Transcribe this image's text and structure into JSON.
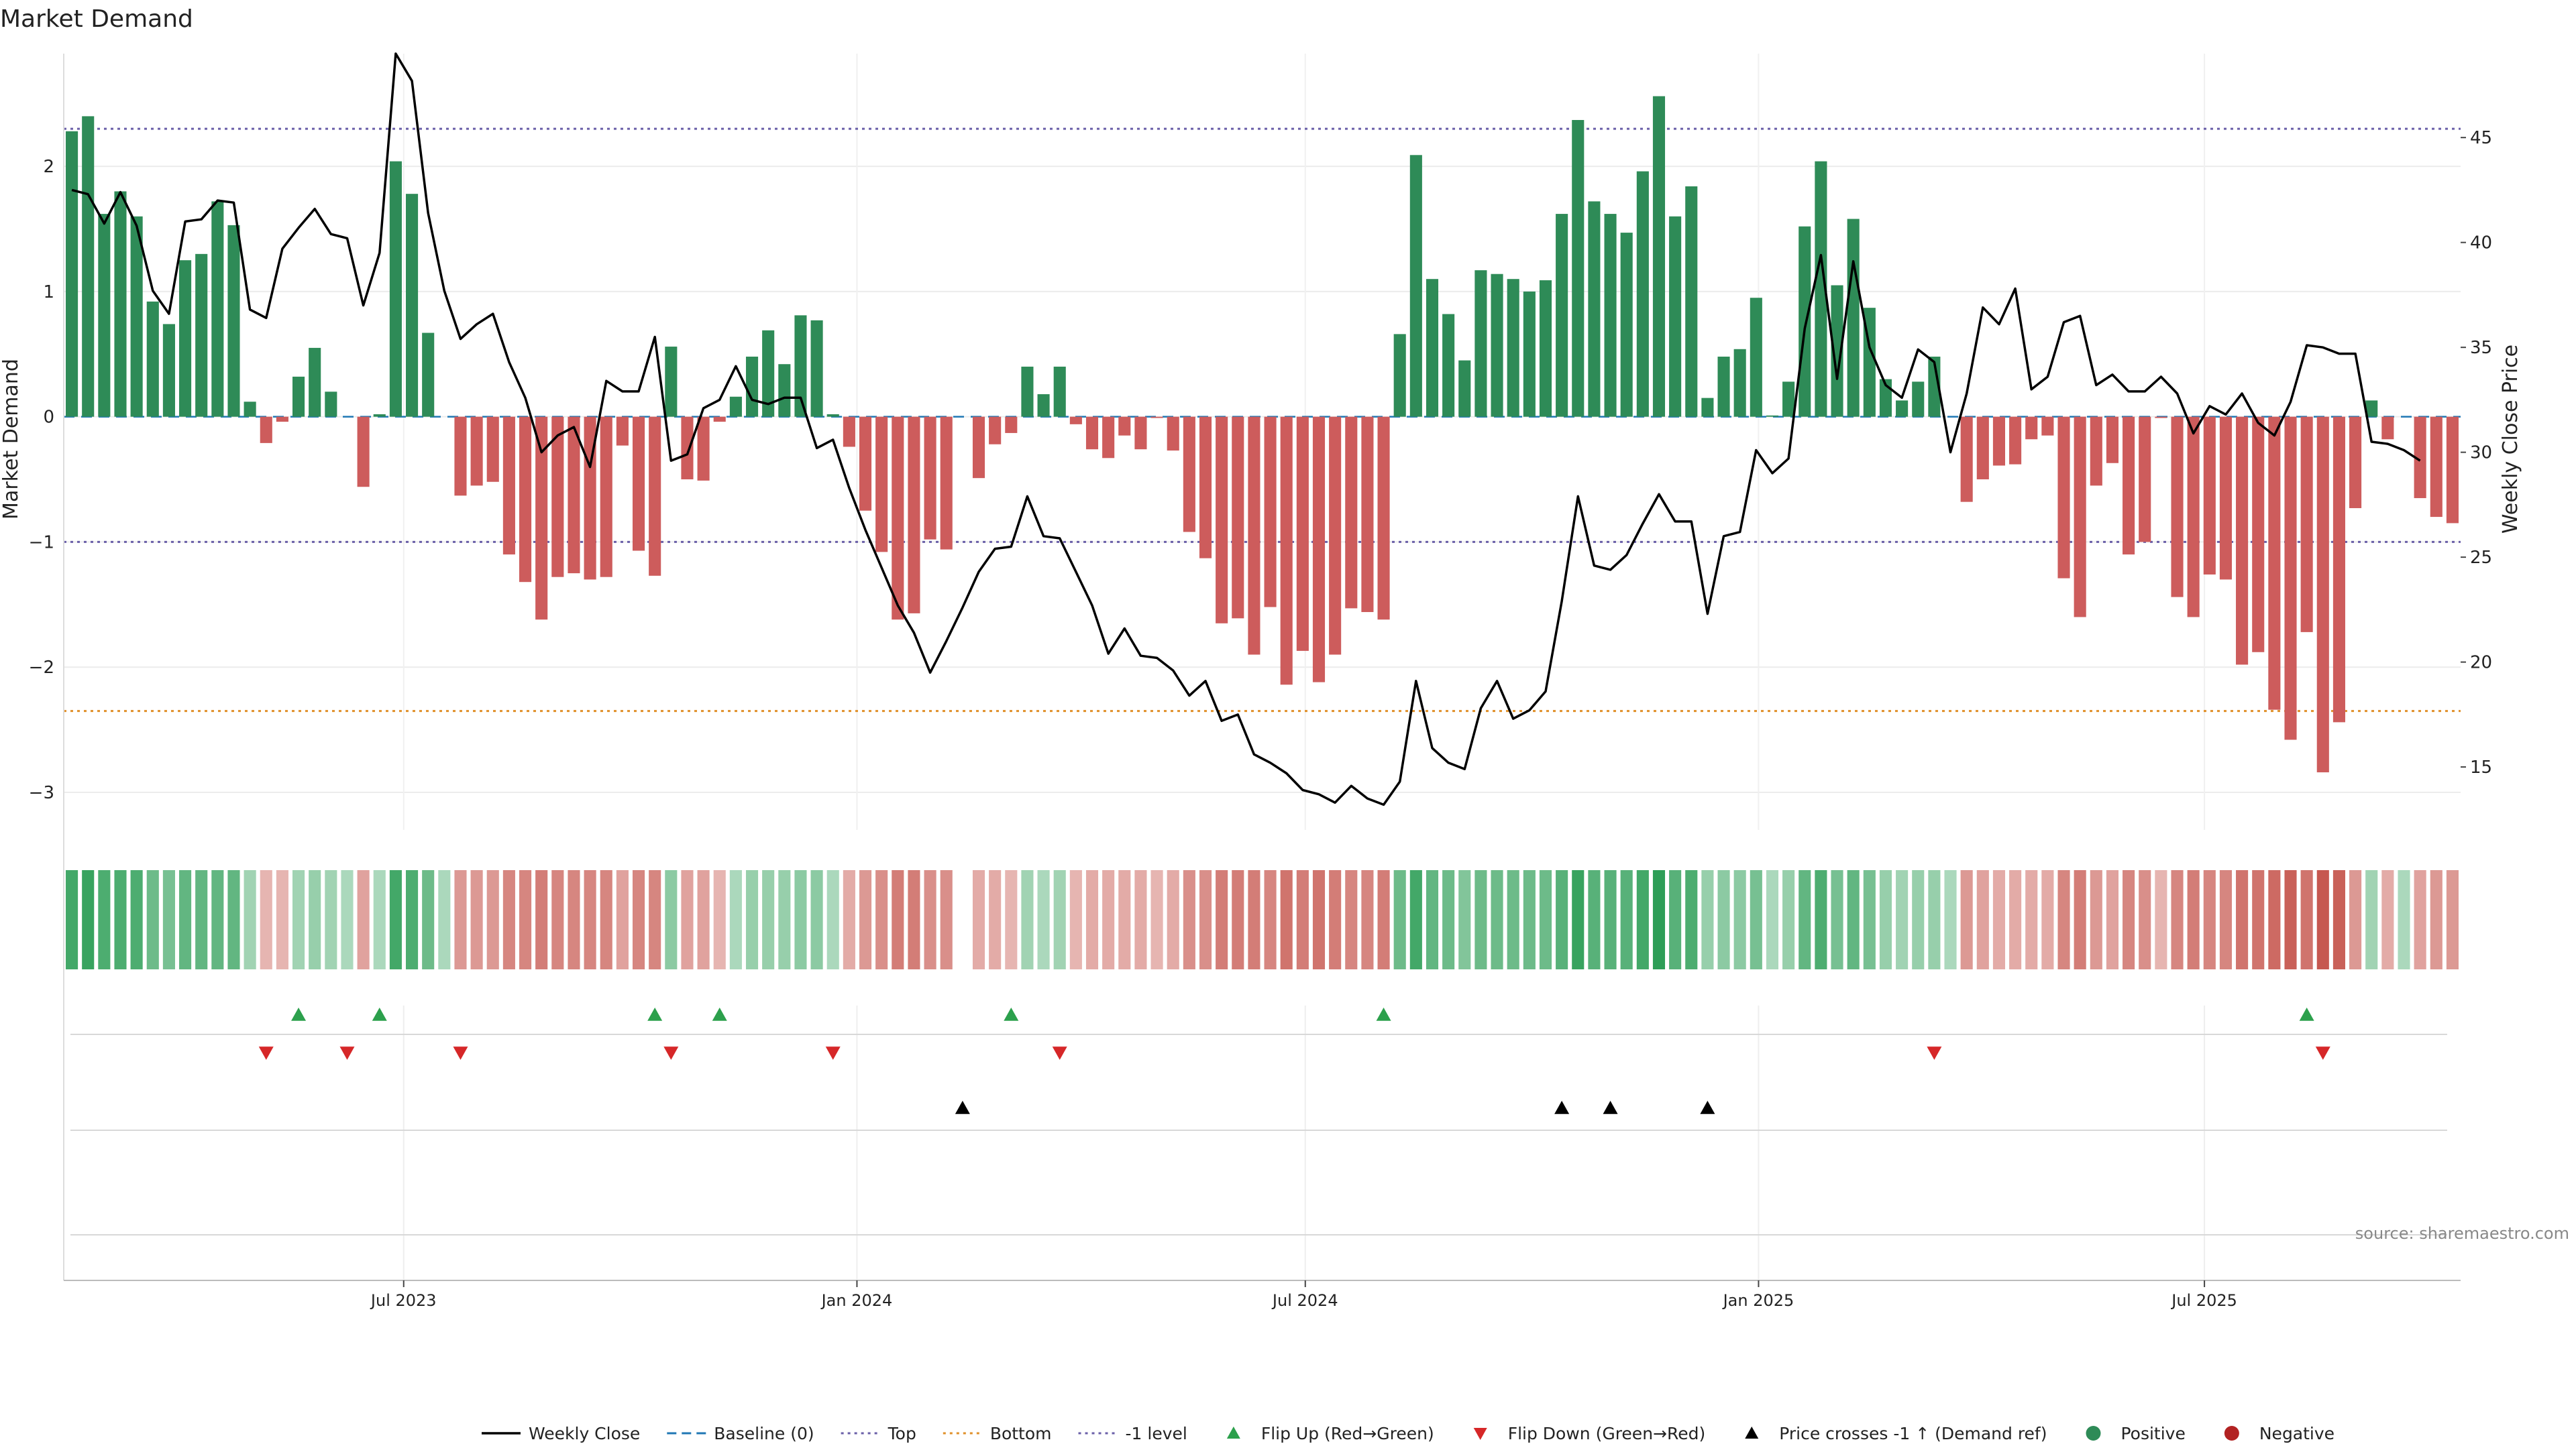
{
  "chart_data": {
    "type": "bar",
    "title": "Market Demand",
    "ylabel": "Market Demand",
    "y2label": "Weekly Close Price",
    "source": "source: sharemaestro.com",
    "ylim": [
      -3.3,
      2.9
    ],
    "yticks": [
      2,
      1,
      0,
      -1,
      -2,
      -3
    ],
    "ytick_labels": [
      "2",
      "1",
      "0",
      "−1",
      "−2",
      "−3"
    ],
    "y2lim": [
      12.0,
      49.0
    ],
    "y2ticks": [
      45,
      40,
      35,
      30,
      25,
      20,
      15
    ],
    "x_range": [
      "2023-02-13",
      "2025-10-13"
    ],
    "x_ticks": [
      {
        "date": "2023-07-01",
        "label": "Jul 2023"
      },
      {
        "date": "2024-01-01",
        "label": "Jan 2024"
      },
      {
        "date": "2024-07-01",
        "label": "Jul 2024"
      },
      {
        "date": "2025-01-01",
        "label": "Jan 2025"
      },
      {
        "date": "2025-07-01",
        "label": "Jul 2025"
      }
    ],
    "reference_lines": [
      {
        "name": "Top",
        "value": 2.3,
        "color": "#6a5fa8"
      },
      {
        "name": "Bottom",
        "value": -2.35,
        "color": "#e0902a"
      },
      {
        "name": "-1 level",
        "value": -1.0,
        "color": "#6a5fa8"
      }
    ],
    "colors": {
      "positive": "#2e8b57",
      "negative": "#cd5c5c",
      "price": "#000000",
      "flip_up": "#2ca04c",
      "flip_down": "#d62728",
      "baseline": "#1f77b4",
      "strip_positive": "#2e9e57",
      "strip_negative": "#c0453c"
    },
    "start_date": "2023-02-20",
    "demand": [
      2.28,
      2.4,
      1.62,
      1.8,
      1.6,
      0.92,
      0.74,
      1.25,
      1.3,
      1.72,
      1.53,
      0.12,
      -0.21,
      -0.04,
      0.32,
      0.55,
      0.2,
      0.0,
      -0.56,
      0.02,
      2.04,
      1.78,
      0.67,
      0.0,
      -0.63,
      -0.55,
      -0.52,
      -1.1,
      -1.32,
      -1.62,
      -1.28,
      -1.25,
      -1.3,
      -1.28,
      -0.23,
      -1.07,
      -1.27,
      0.56,
      -0.5,
      -0.51,
      -0.04,
      0.16,
      0.48,
      0.69,
      0.42,
      0.81,
      0.77,
      0.02,
      -0.24,
      -0.75,
      -1.08,
      -1.62,
      -1.57,
      -0.98,
      -1.06,
      0.0,
      -0.49,
      -0.22,
      -0.13,
      0.4,
      0.18,
      0.4,
      -0.06,
      -0.26,
      -0.33,
      -0.15,
      -0.26,
      -0.01,
      -0.27,
      -0.92,
      -1.13,
      -1.65,
      -1.61,
      -1.9,
      -1.52,
      -2.14,
      -1.87,
      -2.12,
      -1.9,
      -1.53,
      -1.56,
      -1.62,
      0.66,
      2.09,
      1.1,
      0.82,
      0.45,
      1.17,
      1.14,
      1.1,
      1.0,
      1.09,
      1.62,
      2.37,
      1.72,
      1.62,
      1.47,
      1.96,
      2.56,
      1.6,
      1.84,
      0.15,
      0.48,
      0.54,
      0.95,
      0.01,
      0.28,
      1.52,
      2.04,
      1.05,
      1.58,
      0.87,
      0.3,
      0.13,
      0.28,
      0.48,
      0.0,
      -0.68,
      -0.5,
      -0.39,
      -0.38,
      -0.18,
      -0.15,
      -1.29,
      -1.6,
      -0.55,
      -0.37,
      -1.1,
      -1.0,
      -0.01,
      -1.44,
      -1.6,
      -1.26,
      -1.3,
      -1.98,
      -1.88,
      -2.34,
      -2.58,
      -1.72,
      -2.84,
      -2.44,
      -0.73,
      0.13,
      -0.18,
      0.0,
      -0.65,
      -0.8,
      -0.85
    ],
    "price": [
      42.5,
      42.3,
      40.9,
      42.4,
      40.8,
      37.7,
      36.6,
      41.0,
      41.1,
      42.0,
      41.9,
      36.8,
      36.4,
      39.7,
      40.7,
      41.6,
      40.4,
      40.2,
      37.0,
      39.5,
      49.0,
      47.7,
      41.4,
      37.7,
      35.4,
      36.1,
      36.6,
      34.3,
      32.6,
      30.0,
      30.8,
      31.2,
      29.3,
      33.4,
      32.9,
      32.9,
      35.5,
      29.6,
      29.9,
      32.1,
      32.5,
      34.1,
      32.5,
      32.3,
      32.6,
      32.6,
      30.2,
      30.6,
      28.3,
      26.3,
      24.5,
      22.7,
      21.4,
      19.5,
      21.0,
      22.6,
      24.3,
      25.4,
      25.5,
      27.9,
      26.0,
      25.9,
      24.3,
      22.7,
      20.4,
      21.6,
      20.3,
      20.2,
      19.6,
      18.4,
      19.1,
      17.2,
      17.5,
      15.6,
      15.2,
      14.7,
      13.9,
      13.7,
      13.3,
      14.1,
      13.5,
      13.2,
      14.3,
      19.1,
      15.9,
      15.2,
      14.9,
      17.8,
      19.1,
      17.3,
      17.7,
      18.6,
      22.9,
      27.9,
      24.6,
      24.4,
      25.1,
      26.6,
      28.0,
      26.7,
      26.7,
      22.3,
      26.0,
      26.2,
      30.1,
      29.0,
      29.7,
      35.9,
      39.4,
      33.5,
      39.1,
      35.0,
      33.2,
      32.6,
      34.9,
      34.3,
      30.0,
      32.8,
      36.9,
      36.1,
      37.8,
      33.0,
      33.6,
      36.2,
      36.5,
      33.2,
      33.7,
      32.9,
      32.9,
      33.6,
      32.8,
      30.9,
      32.2,
      31.8,
      32.8,
      31.4,
      30.8,
      32.4,
      35.1,
      35.0,
      34.7,
      34.7,
      30.5,
      30.4,
      30.1,
      29.6
    ]
  },
  "strip": [
    1.3,
    1.4,
    1.2,
    1.2,
    1.2,
    0.9,
    0.8,
    1.0,
    1.0,
    1.0,
    1.0,
    0.4,
    0.3,
    0.3,
    0.4,
    0.5,
    0.4,
    0.3,
    0.5,
    0.3,
    1.3,
    1.2,
    0.9,
    0.3,
    0.6,
    0.6,
    0.6,
    0.8,
    0.8,
    0.9,
    0.8,
    0.8,
    0.8,
    0.8,
    0.5,
    0.8,
    0.8,
    0.6,
    0.5,
    0.5,
    0.3,
    0.3,
    0.5,
    0.5,
    0.5,
    0.6,
    0.6,
    0.3,
    0.4,
    0.6,
    0.7,
    0.9,
    0.9,
    0.7,
    0.7,
    0.0,
    0.4,
    0.4,
    0.3,
    0.4,
    0.3,
    0.4,
    0.3,
    0.4,
    0.4,
    0.4,
    0.4,
    0.3,
    0.4,
    0.7,
    0.7,
    0.9,
    0.9,
    0.9,
    0.8,
    1.0,
    0.9,
    1.0,
    0.9,
    0.8,
    0.8,
    0.9,
    0.9,
    1.3,
    1.0,
    0.9,
    0.7,
    0.9,
    0.9,
    0.9,
    0.9,
    0.9,
    1.1,
    1.4,
    1.1,
    1.1,
    1.1,
    1.3,
    1.5,
    1.1,
    1.2,
    0.5,
    0.6,
    0.6,
    0.8,
    0.3,
    0.5,
    1.0,
    1.2,
    0.8,
    1.0,
    0.8,
    0.5,
    0.4,
    0.5,
    0.5,
    0.3,
    0.6,
    0.5,
    0.4,
    0.4,
    0.4,
    0.4,
    0.8,
    0.9,
    0.6,
    0.5,
    0.8,
    0.7,
    0.3,
    0.8,
    0.9,
    0.8,
    0.8,
    1.0,
    1.0,
    1.1,
    1.2,
    1.0,
    1.3,
    1.2,
    0.6,
    0.4,
    0.4,
    0.3,
    0.5,
    0.6,
    0.6
  ],
  "events": {
    "flip_up": [
      14,
      19,
      36,
      40,
      58,
      81,
      138
    ],
    "flip_down": [
      12,
      17,
      24,
      37,
      47,
      61,
      115,
      139
    ],
    "price_cross": [
      55,
      92,
      95,
      101
    ]
  },
  "legend": [
    {
      "label": "Weekly Close",
      "kind": "line",
      "color": "#000000"
    },
    {
      "label": "Baseline (0)",
      "kind": "dash",
      "color": "#1f77b4"
    },
    {
      "label": "Top",
      "kind": "dot",
      "color": "#6a5fa8"
    },
    {
      "label": "Bottom",
      "kind": "dot",
      "color": "#e0902a"
    },
    {
      "label": "-1 level",
      "kind": "dot",
      "color": "#6a5fa8"
    },
    {
      "label": "Flip Up (Red→Green)",
      "kind": "tri-up",
      "color": "#2ca04c"
    },
    {
      "label": "Flip Down (Green→Red)",
      "kind": "tri-down",
      "color": "#d62728"
    },
    {
      "label": "Price crosses -1 ↑ (Demand ref)",
      "kind": "tri-up",
      "color": "#000000"
    },
    {
      "label": "Positive",
      "kind": "circle",
      "color": "#2e8b57"
    },
    {
      "label": "Negative",
      "kind": "circle",
      "color": "#b22222"
    }
  ]
}
